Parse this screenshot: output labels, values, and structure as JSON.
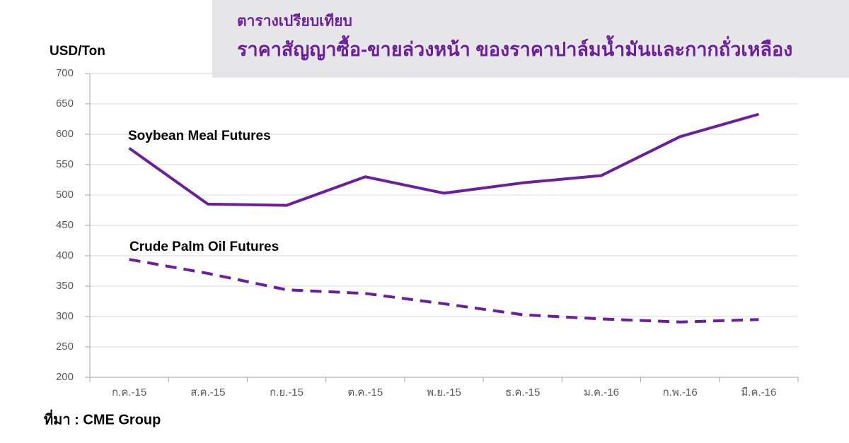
{
  "chart_data": {
    "type": "line",
    "title": "ราคาสัญญาซื้อ-ขายล่วงหน้า ของราคาปาล์มน้ำมันและกากถั่วเหลือง",
    "subtitle": "ตารางเปรียบเทียบ",
    "y_label": "USD/Ton",
    "source": "ที่มา : CME Group",
    "categories": [
      "ก.ค.-15",
      "ส.ค.-15",
      "ก.ย.-15",
      "ต.ค.-15",
      "พ.ย.-15",
      "ธ.ค.-15",
      "ม.ค.-16",
      "ก.พ.-16",
      "มี.ค.-16"
    ],
    "series": [
      {
        "name": "Soybean Meal Futures",
        "color": "#6a1f9c",
        "dashed": false,
        "values": [
          577,
          485,
          483,
          530,
          503,
          520,
          532,
          596,
          633
        ]
      },
      {
        "name": "Crude Palm Oil Futures",
        "color": "#6a1f9c",
        "dashed": true,
        "values": [
          394,
          371,
          344,
          338,
          321,
          303,
          296,
          291,
          295
        ]
      }
    ],
    "ylim": [
      200,
      700
    ],
    "yticks": [
      200,
      250,
      300,
      350,
      400,
      450,
      500,
      550,
      600,
      650,
      700
    ],
    "grid": true
  }
}
